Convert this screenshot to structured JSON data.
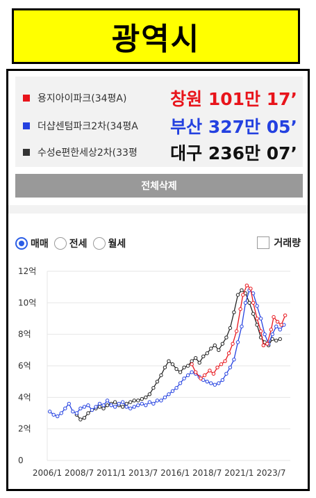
{
  "header": {
    "title": "광역시"
  },
  "compare": [
    {
      "name": "용지아이파크(34평A)",
      "price": "창원 101만 17’",
      "color": "#e8141b"
    },
    {
      "name": "더샵센텀파크2차(34평A",
      "price": "부산 327만 05’",
      "color": "#2441e0"
    },
    {
      "name": "수성e편한세상2차(33평",
      "price": "대구 236만 07’",
      "color": "#222222"
    }
  ],
  "toolbar": {
    "delete_all": "전체삭제"
  },
  "deal_types": [
    {
      "label": "매매",
      "selected": true
    },
    {
      "label": "전세",
      "selected": false
    },
    {
      "label": "월세",
      "selected": false
    }
  ],
  "volume_toggle": {
    "label": "거래량",
    "checked": false
  },
  "chart_data": {
    "type": "line",
    "x_unit": "year",
    "xlim": [
      2006.0,
      2025.0
    ],
    "ylim": [
      0,
      12
    ],
    "yticks": [
      0,
      2,
      4,
      6,
      8,
      10,
      12
    ],
    "ytick_labels": [
      "0",
      "2억",
      "4억",
      "6억",
      "8억",
      "10억",
      "12억"
    ],
    "xticks": [
      2006.0,
      2008.5,
      2011.0,
      2013.5,
      2016.0,
      2018.5,
      2021.0,
      2023.5
    ],
    "xtick_labels": [
      "2006/1",
      "2008/7",
      "2011/1",
      "2013/7",
      "2016/1",
      "2018/7",
      "2021/1",
      "2023/7"
    ],
    "grid": "horizontal",
    "series": [
      {
        "name": "용지아이파크(34평A)",
        "color": "#e8141b",
        "x": [
          2017.3,
          2017.6,
          2018.0,
          2018.3,
          2018.7,
          2019.0,
          2019.3,
          2019.6,
          2019.9,
          2020.2,
          2020.5,
          2020.8,
          2021.1,
          2021.3,
          2021.6,
          2021.9,
          2022.1,
          2022.4,
          2022.7,
          2022.9,
          2023.2,
          2023.5,
          2023.7,
          2024.0,
          2024.3,
          2024.6
        ],
        "y": [
          6.1,
          5.6,
          5.2,
          5.4,
          5.7,
          5.5,
          5.9,
          6.1,
          6.3,
          6.8,
          7.4,
          8.2,
          9.6,
          10.5,
          11.1,
          10.9,
          10.0,
          9.0,
          8.2,
          7.3,
          7.4,
          8.3,
          9.1,
          8.8,
          8.6,
          9.2
        ]
      },
      {
        "name": "더샵센텀파크2차(34평A",
        "color": "#2441e0",
        "x": [
          2006.2,
          2006.5,
          2006.8,
          2007.1,
          2007.4,
          2007.7,
          2008.0,
          2008.3,
          2008.6,
          2008.9,
          2009.2,
          2009.5,
          2009.8,
          2010.1,
          2010.4,
          2010.7,
          2011.0,
          2011.3,
          2011.6,
          2011.9,
          2012.2,
          2012.5,
          2012.8,
          2013.1,
          2013.4,
          2013.7,
          2014.0,
          2014.3,
          2014.6,
          2014.9,
          2015.2,
          2015.5,
          2015.8,
          2016.1,
          2016.4,
          2016.7,
          2017.0,
          2017.3,
          2017.6,
          2017.9,
          2018.2,
          2018.5,
          2018.8,
          2019.1,
          2019.4,
          2019.7,
          2020.0,
          2020.3,
          2020.6,
          2020.9,
          2021.2,
          2021.5,
          2021.8,
          2022.1,
          2022.4,
          2022.7,
          2023.0,
          2023.3,
          2023.6,
          2023.9,
          2024.2,
          2024.5
        ],
        "y": [
          3.1,
          2.9,
          2.8,
          3.0,
          3.3,
          3.6,
          3.1,
          3.0,
          3.3,
          3.4,
          3.5,
          3.2,
          3.4,
          3.6,
          3.5,
          3.8,
          3.5,
          3.4,
          3.6,
          3.7,
          3.4,
          3.3,
          3.4,
          3.5,
          3.6,
          3.5,
          3.7,
          3.6,
          3.8,
          3.8,
          4.0,
          4.2,
          4.4,
          4.6,
          4.9,
          5.2,
          5.4,
          5.6,
          5.5,
          5.3,
          5.1,
          5.0,
          4.9,
          4.8,
          4.9,
          5.1,
          5.5,
          5.9,
          6.4,
          7.5,
          8.5,
          10.0,
          10.8,
          10.6,
          9.8,
          9.0,
          8.0,
          7.4,
          8.0,
          8.5,
          8.3,
          8.6
        ]
      },
      {
        "name": "수성e편한세상2차(33평",
        "color": "#222222",
        "x": [
          2008.3,
          2008.6,
          2008.9,
          2009.2,
          2009.5,
          2009.8,
          2010.1,
          2010.4,
          2010.7,
          2011.0,
          2011.3,
          2011.6,
          2011.9,
          2012.2,
          2012.5,
          2012.8,
          2013.1,
          2013.4,
          2013.7,
          2014.0,
          2014.3,
          2014.6,
          2014.9,
          2015.2,
          2015.5,
          2015.8,
          2016.1,
          2016.4,
          2016.7,
          2017.0,
          2017.3,
          2017.6,
          2017.9,
          2018.2,
          2018.5,
          2018.8,
          2019.1,
          2019.4,
          2019.7,
          2020.0,
          2020.3,
          2020.6,
          2020.9,
          2021.2,
          2021.5,
          2021.8,
          2022.1,
          2022.4,
          2022.7,
          2023.0,
          2023.3,
          2023.6,
          2023.9,
          2024.2
        ],
        "y": [
          2.9,
          2.6,
          2.7,
          3.0,
          3.2,
          3.3,
          3.4,
          3.3,
          3.5,
          3.6,
          3.7,
          3.5,
          3.4,
          3.6,
          3.7,
          3.8,
          3.8,
          3.9,
          4.0,
          4.2,
          4.6,
          5.0,
          5.4,
          5.9,
          6.3,
          6.1,
          5.8,
          5.6,
          5.9,
          6.0,
          6.3,
          6.5,
          6.2,
          6.6,
          6.8,
          7.1,
          7.3,
          7.0,
          7.4,
          7.8,
          8.4,
          9.4,
          10.5,
          10.8,
          10.6,
          10.0,
          9.3,
          8.6,
          7.8,
          7.5,
          7.3,
          7.7,
          7.6,
          7.7
        ]
      }
    ]
  }
}
